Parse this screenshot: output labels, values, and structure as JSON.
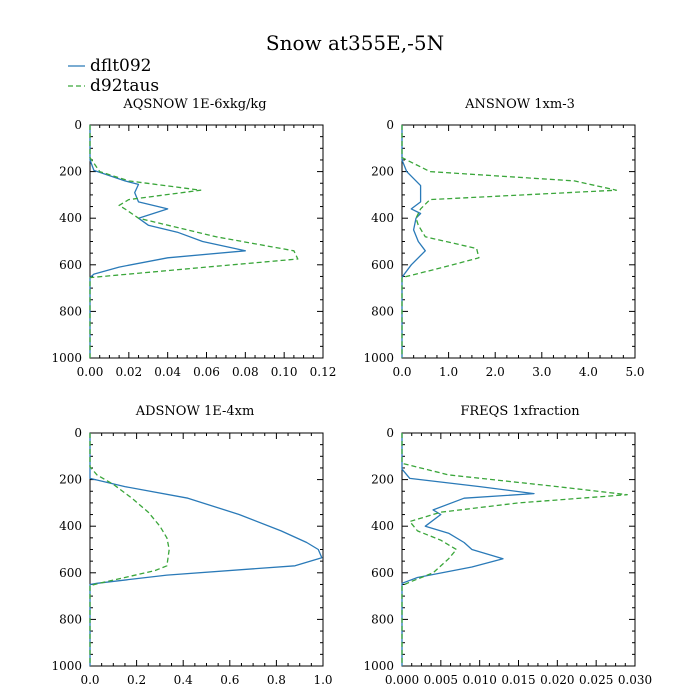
{
  "title": "Snow at355E,-5N",
  "legend": [
    {
      "name": "dflt092",
      "color": "#2a7ab8",
      "dash": "solid"
    },
    {
      "name": "d92taus",
      "color": "#3aa63a",
      "dash": "dashed"
    }
  ],
  "chart_data": [
    {
      "type": "line",
      "title": "AQSNOW 1E-6xkg/kg",
      "xlim": [
        0,
        0.12
      ],
      "ylim": [
        1000,
        0
      ],
      "xticks": [
        0,
        0.02,
        0.04,
        0.06,
        0.08,
        0.1,
        0.12
      ],
      "xtick_labels": [
        "0.00",
        "0.02",
        "0.04",
        "0.06",
        "0.08",
        "0.10",
        "0.12"
      ],
      "yticks": [
        0,
        200,
        400,
        600,
        800,
        1000
      ],
      "ytick_labels": [
        "0",
        "200",
        "400",
        "600",
        "800",
        "1000"
      ],
      "series": [
        {
          "name": "dflt092",
          "x": [
            0,
            0,
            0.002,
            0.018,
            0.025,
            0.023,
            0.025,
            0.04,
            0.025,
            0.03,
            0.045,
            0.058,
            0.08,
            0.04,
            0.015,
            0.002,
            0,
            0
          ],
          "y": [
            0,
            150,
            195,
            240,
            255,
            290,
            330,
            360,
            400,
            430,
            460,
            500,
            540,
            570,
            610,
            640,
            655,
            1000
          ]
        },
        {
          "name": "d92taus",
          "x": [
            0,
            0,
            0.005,
            0.02,
            0.057,
            0.02,
            0.015,
            0.018,
            0.025,
            0.045,
            0.065,
            0.105,
            0.107,
            0.06,
            0.02,
            0,
            0
          ],
          "y": [
            0,
            140,
            200,
            240,
            280,
            320,
            345,
            360,
            400,
            440,
            480,
            540,
            575,
            610,
            640,
            655,
            1000
          ]
        }
      ]
    },
    {
      "type": "line",
      "title": "ANSNOW 1xm-3",
      "xlim": [
        0,
        5.0
      ],
      "ylim": [
        1000,
        0
      ],
      "xticks": [
        0,
        1,
        2,
        3,
        4,
        5
      ],
      "xtick_labels": [
        "0.0",
        "1.0",
        "2.0",
        "3.0",
        "4.0",
        "5.0"
      ],
      "yticks": [
        0,
        200,
        400,
        600,
        800,
        1000
      ],
      "ytick_labels": [
        "0",
        "200",
        "400",
        "600",
        "800",
        "1000"
      ],
      "series": [
        {
          "name": "dflt092",
          "x": [
            0,
            0,
            0.1,
            0.3,
            0.4,
            0.4,
            0.2,
            0.4,
            0.3,
            0.25,
            0.35,
            0.5,
            0.2,
            0.05,
            0,
            0
          ],
          "y": [
            0,
            150,
            200,
            240,
            260,
            330,
            360,
            380,
            400,
            450,
            500,
            540,
            600,
            640,
            655,
            1000
          ]
        },
        {
          "name": "d92taus",
          "x": [
            0,
            0,
            0.6,
            3.7,
            4.6,
            0.6,
            0.4,
            0.3,
            0.35,
            0.5,
            1.6,
            1.65,
            0.9,
            0.3,
            0,
            0
          ],
          "y": [
            0,
            140,
            200,
            240,
            280,
            320,
            360,
            400,
            430,
            480,
            530,
            570,
            610,
            640,
            655,
            1000
          ]
        }
      ]
    },
    {
      "type": "line",
      "title": "ADSNOW 1E-4xm",
      "xlim": [
        0,
        1.0
      ],
      "ylim": [
        1000,
        0
      ],
      "xticks": [
        0,
        0.2,
        0.4,
        0.6,
        0.8,
        1.0
      ],
      "xtick_labels": [
        "0.0",
        "0.2",
        "0.4",
        "0.6",
        "0.8",
        "1.0"
      ],
      "yticks": [
        0,
        200,
        400,
        600,
        800,
        1000
      ],
      "ytick_labels": [
        "0",
        "200",
        "400",
        "600",
        "800",
        "1000"
      ],
      "series": [
        {
          "name": "dflt092",
          "x": [
            0,
            0,
            0.15,
            0.42,
            0.64,
            0.82,
            0.93,
            0.98,
            0.995,
            0.88,
            0.33,
            0.03,
            0,
            0
          ],
          "y": [
            0,
            195,
            230,
            280,
            350,
            420,
            470,
            500,
            535,
            570,
            610,
            645,
            650,
            1000
          ]
        },
        {
          "name": "d92taus",
          "x": [
            0,
            0,
            0.03,
            0.1,
            0.18,
            0.25,
            0.3,
            0.33,
            0.34,
            0.33,
            0.28,
            0.15,
            0.04,
            0,
            0
          ],
          "y": [
            0,
            145,
            180,
            220,
            280,
            340,
            400,
            450,
            500,
            570,
            590,
            620,
            645,
            655,
            1000
          ]
        }
      ]
    },
    {
      "type": "line",
      "title": "FREQS 1xfraction",
      "xlim": [
        0,
        0.03
      ],
      "ylim": [
        1000,
        0
      ],
      "xticks": [
        0,
        0.005,
        0.01,
        0.015,
        0.02,
        0.025,
        0.03
      ],
      "xtick_labels": [
        "0.000",
        "0.005",
        "0.010",
        "0.015",
        "0.020",
        "0.025",
        "0.030"
      ],
      "yticks": [
        0,
        200,
        400,
        600,
        800,
        1000
      ],
      "ytick_labels": [
        "0",
        "200",
        "400",
        "600",
        "800",
        "1000"
      ],
      "series": [
        {
          "name": "dflt092",
          "x": [
            0,
            0,
            0.001,
            0.01,
            0.017,
            0.008,
            0.004,
            0.005,
            0.003,
            0.006,
            0.008,
            0.009,
            0.013,
            0.009,
            0.002,
            0,
            0
          ],
          "y": [
            0,
            155,
            195,
            230,
            260,
            280,
            330,
            350,
            400,
            430,
            470,
            500,
            540,
            575,
            620,
            645,
            1000
          ]
        },
        {
          "name": "d92taus",
          "x": [
            0,
            0,
            0.006,
            0.02,
            0.029,
            0.015,
            0.005,
            0.001,
            0.002,
            0.005,
            0.007,
            0.006,
            0.004,
            0.001,
            0,
            0
          ],
          "y": [
            0,
            130,
            180,
            230,
            265,
            300,
            340,
            380,
            420,
            460,
            500,
            540,
            600,
            640,
            655,
            1000
          ]
        }
      ]
    }
  ]
}
